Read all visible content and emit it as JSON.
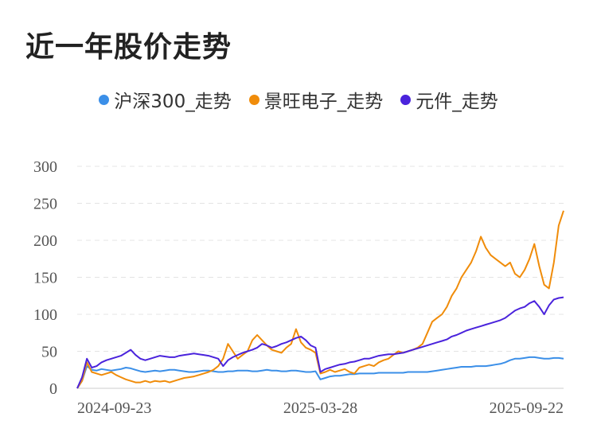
{
  "chart_data": {
    "type": "line",
    "title": "近一年股价走势",
    "xlabel": "",
    "ylabel": "",
    "ylim": [
      0,
      300
    ],
    "yticks": [
      0,
      50,
      100,
      150,
      200,
      250,
      300
    ],
    "x_tick_labels": [
      "2024-09-23",
      "2025-03-28",
      "2025-09-22"
    ],
    "x_count": 101,
    "grid": true,
    "legend_position": "top-center",
    "series": [
      {
        "name": "沪深300_走势",
        "color": "#3b8fe8",
        "values": [
          0,
          10,
          30,
          25,
          24,
          26,
          25,
          24,
          25,
          26,
          28,
          27,
          25,
          23,
          22,
          23,
          24,
          23,
          24,
          25,
          25,
          24,
          23,
          22,
          22,
          23,
          24,
          24,
          23,
          22,
          22,
          23,
          23,
          24,
          24,
          24,
          23,
          23,
          24,
          25,
          24,
          24,
          23,
          23,
          24,
          24,
          23,
          22,
          22,
          23,
          12,
          14,
          16,
          17,
          17,
          18,
          19,
          19,
          20,
          20,
          20,
          20,
          21,
          21,
          21,
          21,
          21,
          21,
          22,
          22,
          22,
          22,
          22,
          23,
          24,
          25,
          26,
          27,
          28,
          29,
          29,
          29,
          30,
          30,
          30,
          31,
          32,
          33,
          35,
          38,
          40,
          40,
          41,
          42,
          42,
          41,
          40,
          40,
          41,
          41,
          40
        ]
      },
      {
        "name": "景旺电子_走势",
        "color": "#f08c0a",
        "values": [
          0,
          10,
          35,
          22,
          20,
          18,
          20,
          22,
          18,
          15,
          12,
          10,
          8,
          8,
          10,
          8,
          10,
          9,
          10,
          8,
          10,
          12,
          14,
          15,
          16,
          18,
          20,
          22,
          25,
          30,
          40,
          60,
          50,
          40,
          45,
          50,
          65,
          72,
          65,
          58,
          52,
          50,
          48,
          55,
          60,
          80,
          62,
          55,
          52,
          48,
          20,
          22,
          25,
          22,
          24,
          26,
          22,
          20,
          28,
          30,
          32,
          30,
          35,
          38,
          40,
          45,
          50,
          48,
          50,
          52,
          55,
          60,
          75,
          90,
          95,
          100,
          110,
          125,
          135,
          150,
          160,
          170,
          185,
          205,
          190,
          180,
          175,
          170,
          165,
          170,
          155,
          150,
          160,
          175,
          195,
          165,
          140,
          135,
          170,
          220,
          240
        ]
      },
      {
        "name": "元件_走势",
        "color": "#4a23dc",
        "values": [
          0,
          15,
          40,
          28,
          30,
          35,
          38,
          40,
          42,
          44,
          48,
          52,
          45,
          40,
          38,
          40,
          42,
          44,
          43,
          42,
          42,
          44,
          45,
          46,
          47,
          46,
          45,
          44,
          42,
          40,
          30,
          38,
          42,
          45,
          48,
          50,
          52,
          55,
          60,
          58,
          55,
          57,
          60,
          62,
          65,
          68,
          70,
          65,
          58,
          55,
          22,
          26,
          28,
          30,
          32,
          33,
          35,
          36,
          38,
          40,
          40,
          42,
          44,
          45,
          46,
          46,
          47,
          48,
          50,
          52,
          54,
          56,
          58,
          60,
          62,
          64,
          66,
          70,
          72,
          75,
          78,
          80,
          82,
          84,
          86,
          88,
          90,
          92,
          95,
          100,
          105,
          108,
          110,
          115,
          118,
          110,
          100,
          112,
          120,
          122,
          123
        ]
      }
    ]
  }
}
